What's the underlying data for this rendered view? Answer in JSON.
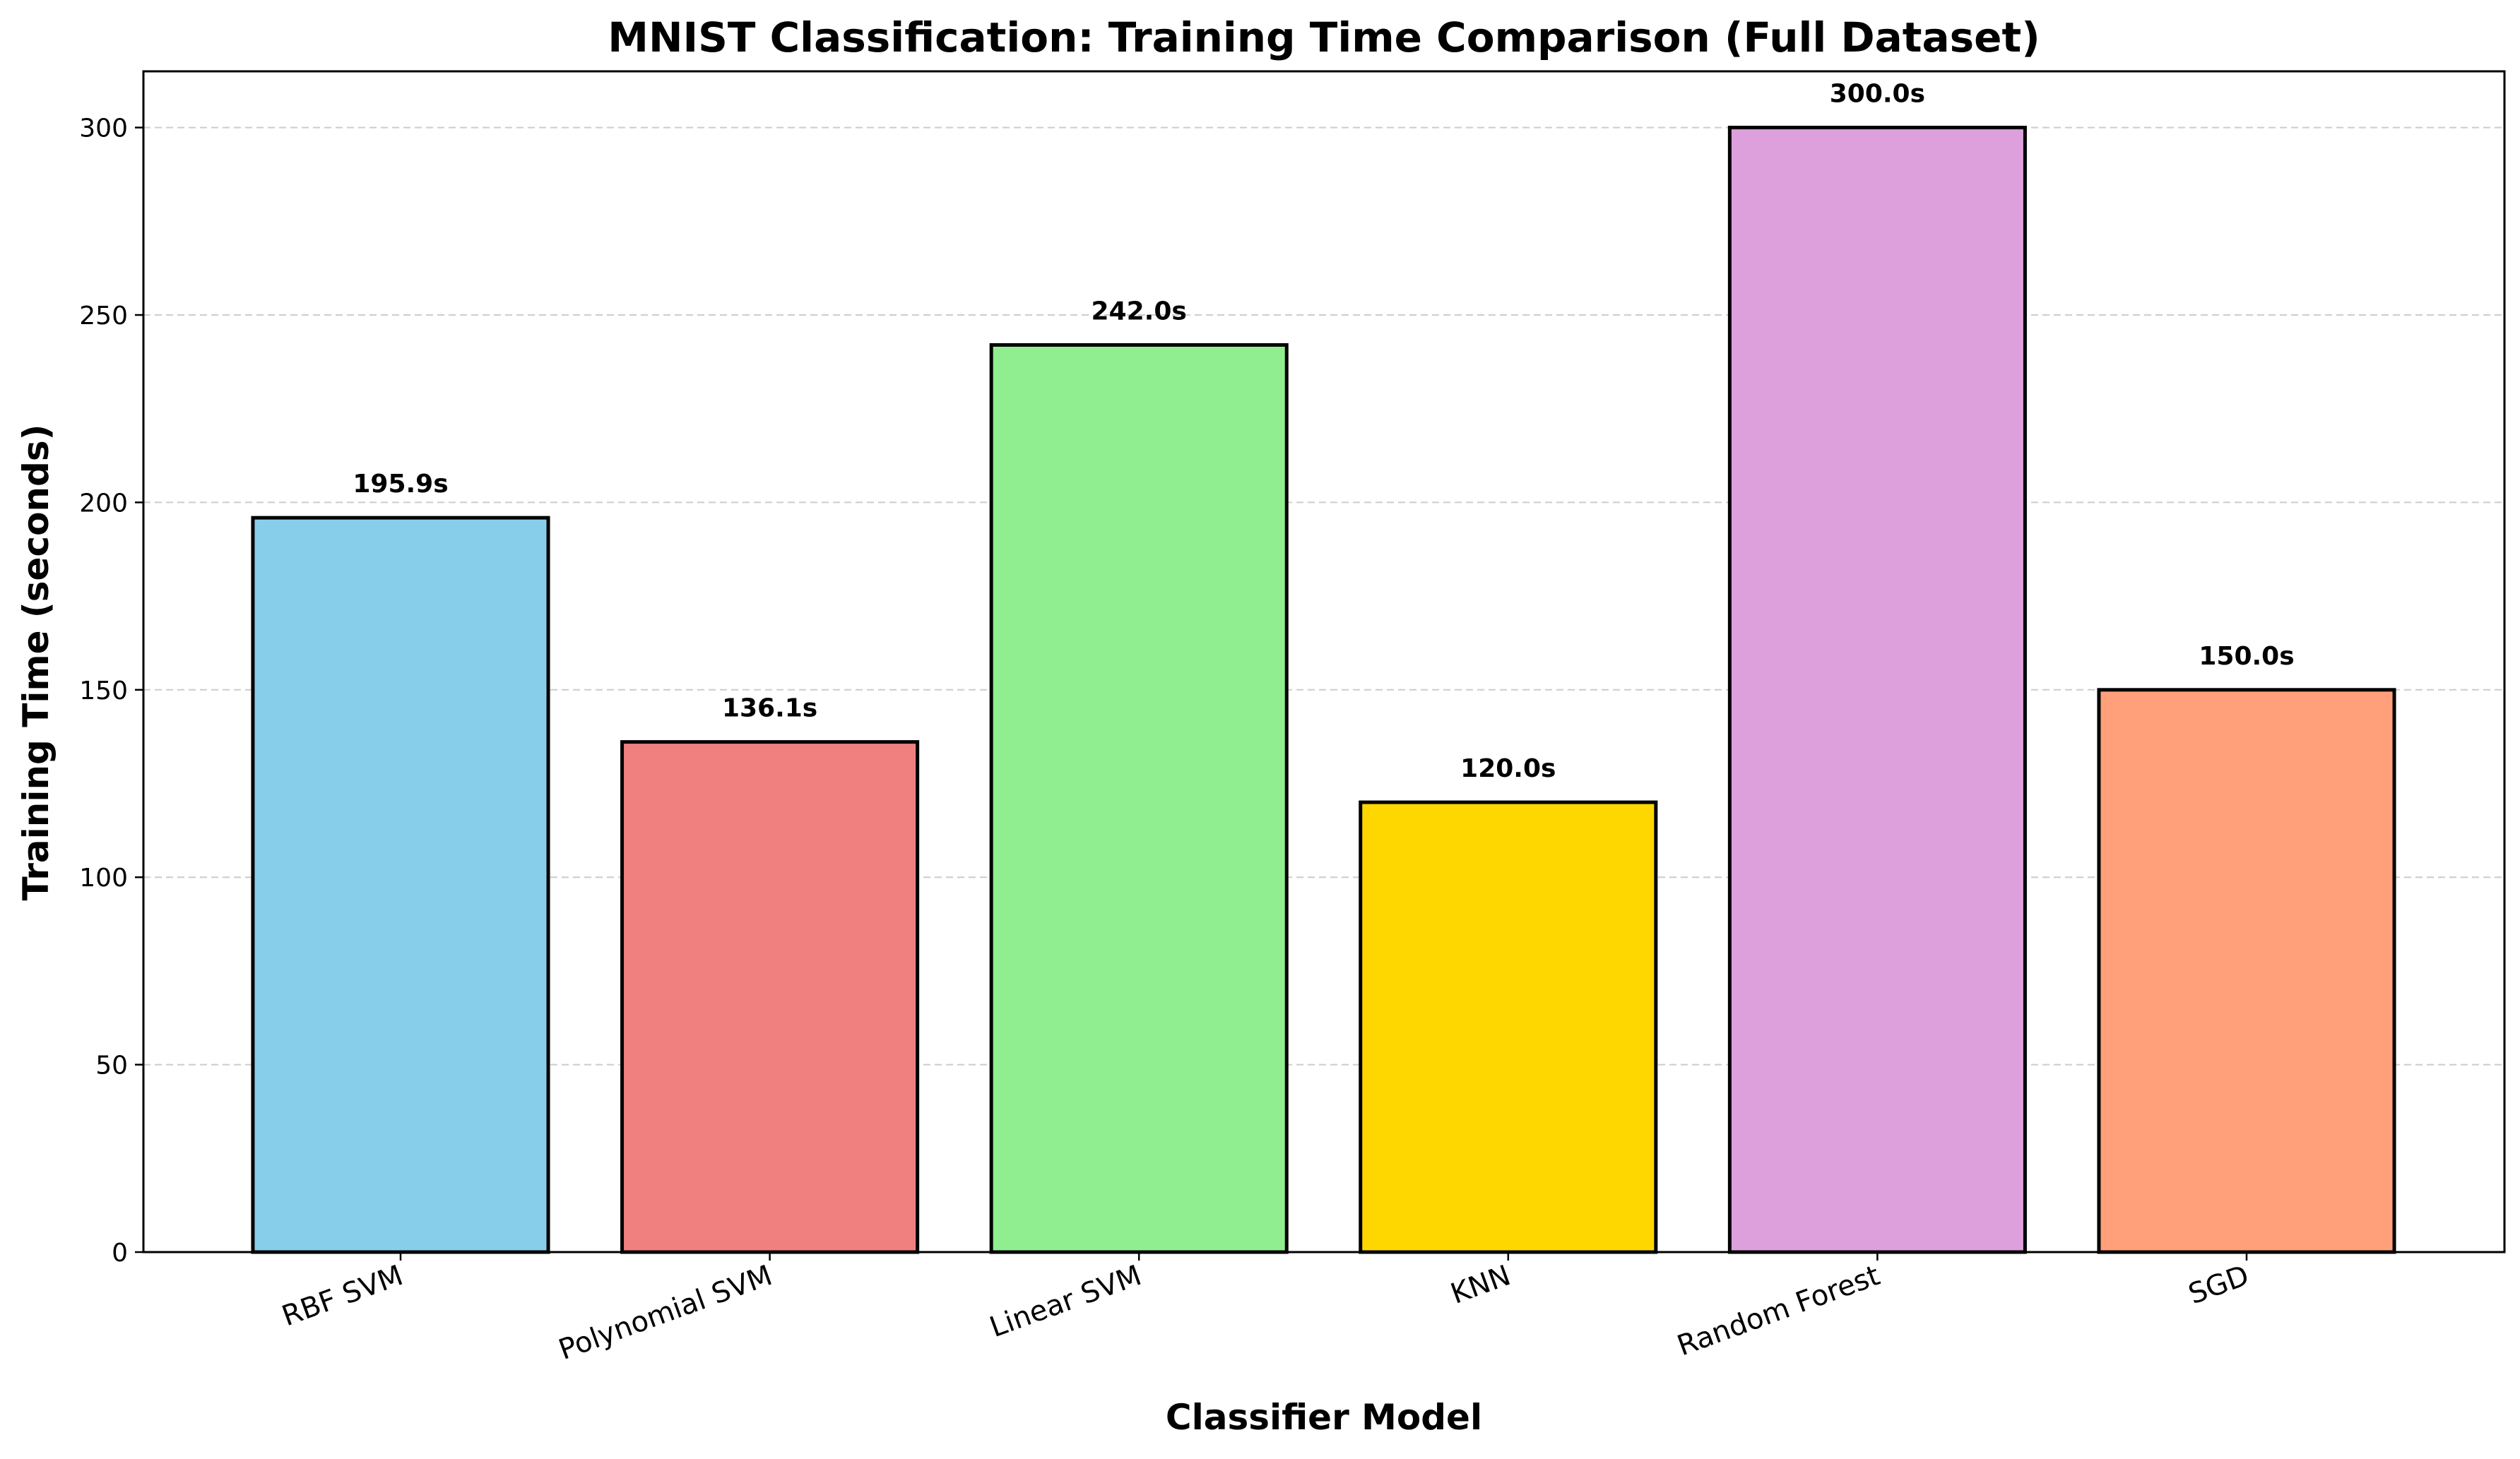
{
  "chart_data": {
    "type": "bar",
    "title": "MNIST Classification: Training Time Comparison (Full Dataset)",
    "xlabel": "Classifier Model",
    "ylabel": "Training Time (seconds)",
    "categories": [
      "RBF SVM",
      "Polynomial SVM",
      "Linear SVM",
      "KNN",
      "Random Forest",
      "SGD"
    ],
    "values": [
      195.9,
      136.1,
      242.0,
      120.0,
      300.0,
      150.0
    ],
    "value_labels": [
      "195.9s",
      "136.1s",
      "242.0s",
      "120.0s",
      "300.0s",
      "150.0s"
    ],
    "colors": [
      "#87CEEB",
      "#F08080",
      "#90EE90",
      "#FFD700",
      "#DDA0DD",
      "#FFA07A"
    ],
    "bar_edge_color": "#000000",
    "ylim": [
      0,
      315
    ],
    "yticks": [
      0,
      50,
      100,
      150,
      200,
      250,
      300
    ],
    "ytick_labels": [
      "0",
      "50",
      "100",
      "150",
      "200",
      "250",
      "300"
    ],
    "grid": "y-axis dashed",
    "grid_color": "#cccccc",
    "xtick_rotation": "rotated",
    "legend": "none"
  }
}
